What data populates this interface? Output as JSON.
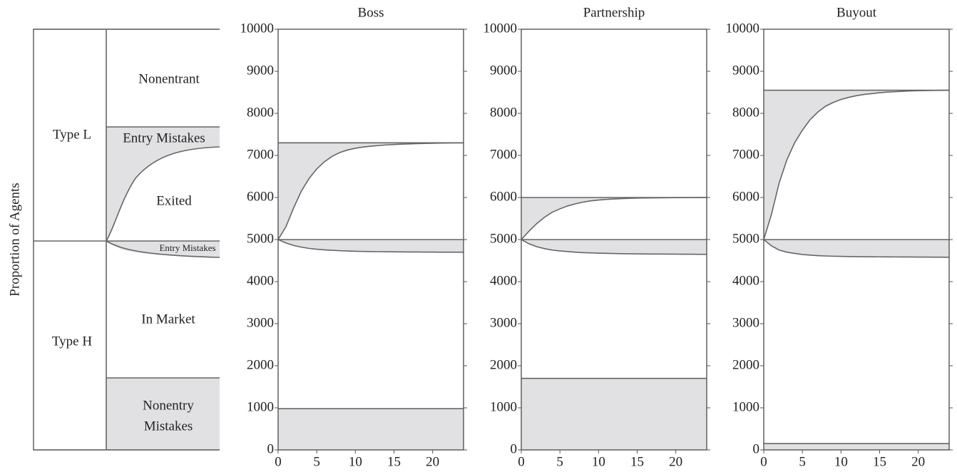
{
  "ylabel": "Proportion of Agents",
  "schematic": {
    "type_labels": [
      "Type L",
      "Type H"
    ],
    "region_labels": [
      "Nonentrant",
      "Entry Mistakes",
      "Exited",
      "Entry Mistakes",
      "In Market"
    ],
    "nonentry_mistakes": [
      "Nonentry",
      "Mistakes"
    ]
  },
  "chart_data": [
    {
      "type": "area",
      "title": "Boss",
      "x": [
        0,
        1,
        2,
        3,
        4,
        5,
        6,
        7,
        8,
        9,
        10,
        11,
        12,
        13,
        14,
        15,
        16,
        17,
        18,
        19,
        20,
        21,
        22,
        23,
        24
      ],
      "series": [
        {
          "values": [
            5000,
            5300,
            5750,
            6150,
            6450,
            6680,
            6850,
            6980,
            7070,
            7130,
            7170,
            7200,
            7220,
            7235,
            7250,
            7260,
            7268,
            7275,
            7280,
            7285,
            7290,
            7293,
            7296,
            7298,
            7300
          ]
        },
        {
          "values": [
            5000,
            4920,
            4860,
            4820,
            4790,
            4770,
            4755,
            4745,
            4735,
            4728,
            4722,
            4718,
            4715,
            4712,
            4710,
            4708,
            4706,
            4705,
            4704,
            4703,
            4702,
            4701,
            4700,
            4700,
            4700
          ]
        }
      ],
      "levels": [
        7300,
        5000,
        980
      ],
      "color": "#666666",
      "fill": "#e1e1e3",
      "xlim": [
        0,
        24
      ],
      "xticks": [
        0,
        5,
        10,
        15,
        20
      ],
      "ylim": [
        0,
        10000
      ],
      "yticks": [
        0,
        1000,
        2000,
        3000,
        4000,
        5000,
        6000,
        7000,
        8000,
        9000,
        10000
      ]
    },
    {
      "type": "area",
      "title": "Partnership",
      "x": [
        0,
        1,
        2,
        3,
        4,
        5,
        6,
        7,
        8,
        9,
        10,
        11,
        12,
        13,
        14,
        15,
        16,
        17,
        18,
        19,
        20,
        21,
        22,
        23,
        24
      ],
      "series": [
        {
          "values": [
            5000,
            5200,
            5380,
            5530,
            5650,
            5730,
            5800,
            5850,
            5890,
            5920,
            5940,
            5955,
            5965,
            5973,
            5980,
            5985,
            5988,
            5991,
            5993,
            5995,
            5996,
            5997,
            5998,
            5999,
            6000
          ]
        },
        {
          "values": [
            5000,
            4900,
            4830,
            4785,
            4750,
            4730,
            4715,
            4700,
            4690,
            4683,
            4677,
            4672,
            4668,
            4665,
            4662,
            4660,
            4658,
            4656,
            4655,
            4654,
            4653,
            4652,
            4651,
            4650,
            4650
          ]
        }
      ],
      "levels": [
        6000,
        5000,
        1700
      ],
      "color": "#666666",
      "fill": "#e1e1e3",
      "xlim": [
        0,
        24
      ],
      "xticks": [
        0,
        5,
        10,
        15,
        20
      ],
      "ylim": [
        0,
        10000
      ],
      "yticks": [
        0,
        1000,
        2000,
        3000,
        4000,
        5000,
        6000,
        7000,
        8000,
        9000,
        10000
      ]
    },
    {
      "type": "area",
      "title": "Buyout",
      "x": [
        0,
        1,
        2,
        3,
        4,
        5,
        6,
        7,
        8,
        9,
        10,
        11,
        12,
        13,
        14,
        15,
        16,
        17,
        18,
        19,
        20,
        21,
        22,
        23,
        24
      ],
      "series": [
        {
          "values": [
            5000,
            5600,
            6350,
            6900,
            7300,
            7600,
            7850,
            8030,
            8170,
            8260,
            8330,
            8380,
            8420,
            8450,
            8470,
            8490,
            8505,
            8515,
            8525,
            8532,
            8538,
            8542,
            8545,
            8548,
            8550
          ]
        },
        {
          "values": [
            5000,
            4850,
            4750,
            4700,
            4670,
            4645,
            4630,
            4618,
            4610,
            4604,
            4600,
            4597,
            4594,
            4592,
            4590,
            4589,
            4588,
            4587,
            4586,
            4585,
            4584,
            4583,
            4582,
            4581,
            4580
          ]
        }
      ],
      "levels": [
        8550,
        5000,
        150
      ],
      "color": "#666666",
      "fill": "#e1e1e3",
      "xlim": [
        0,
        24
      ],
      "xticks": [
        0,
        5,
        10,
        15,
        20
      ],
      "ylim": [
        0,
        10000
      ],
      "yticks": [
        0,
        1000,
        2000,
        3000,
        4000,
        5000,
        6000,
        7000,
        8000,
        9000,
        10000
      ]
    }
  ]
}
